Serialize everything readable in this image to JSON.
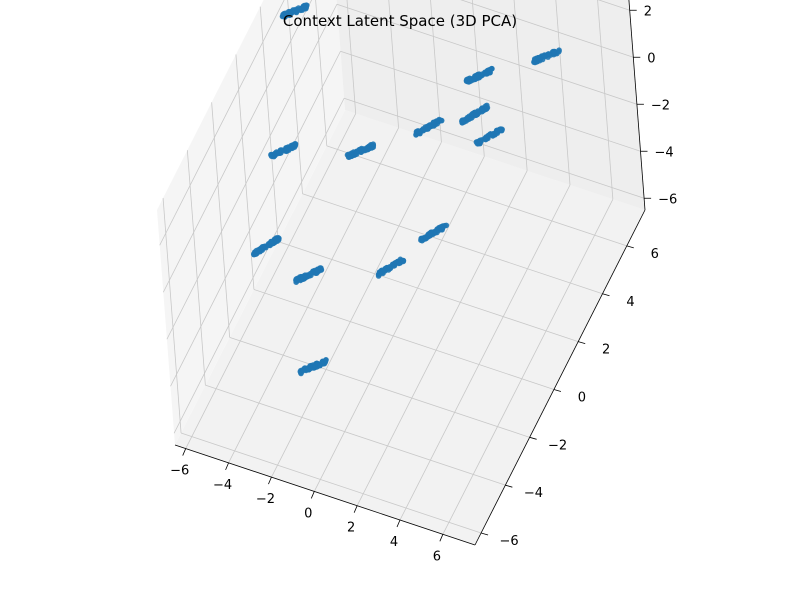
{
  "chart_data": {
    "type": "scatter",
    "title": "Context Latent Space (3D PCA)",
    "xlabel": "",
    "ylabel": "",
    "zlabel": "",
    "xlim": [
      -6.5,
      7.5
    ],
    "ylim": [
      -6.5,
      7.5
    ],
    "zlim": [
      -6.5,
      3.5
    ],
    "grid": true,
    "legend": "none",
    "x_ticks": [
      "−6",
      "−4",
      "−2",
      "0",
      "2",
      "4",
      "6"
    ],
    "y_ticks": [
      "−6",
      "−4",
      "−2",
      "0",
      "2",
      "4",
      "6"
    ],
    "z_ticks": [
      "−6",
      "−4",
      "−2",
      "0",
      "2"
    ],
    "marker_color": "#1f77b4",
    "clusters": [
      {
        "x": -5.5,
        "y": 3.0,
        "z": 2.6
      },
      {
        "x": -3.8,
        "y": 5.5,
        "z": 2.9
      },
      {
        "x": -4.2,
        "y": -0.6,
        "z": 0.7
      },
      {
        "x": -5.4,
        "y": -0.5,
        "z": -3.8
      },
      {
        "x": -2.7,
        "y": 2.7,
        "z": -2.2
      },
      {
        "x": 0.2,
        "y": 3.4,
        "z": -1.0
      },
      {
        "x": 1.4,
        "y": 5.5,
        "z": -0.6
      },
      {
        "x": 1.5,
        "y": 4.8,
        "z": -1.5
      },
      {
        "x": 4.0,
        "y": 6.5,
        "z": 0.0
      },
      {
        "x": 4.4,
        "y": 1.4,
        "z": 1.9
      },
      {
        "x": -3.3,
        "y": -0.8,
        "z": -4.1
      },
      {
        "x": 3.5,
        "y": -5.0,
        "z": 2.6
      },
      {
        "x": -0.6,
        "y": -5.0,
        "z": -2.9
      },
      {
        "x": 5.0,
        "y": -4.0,
        "z": 3.5
      }
    ]
  }
}
